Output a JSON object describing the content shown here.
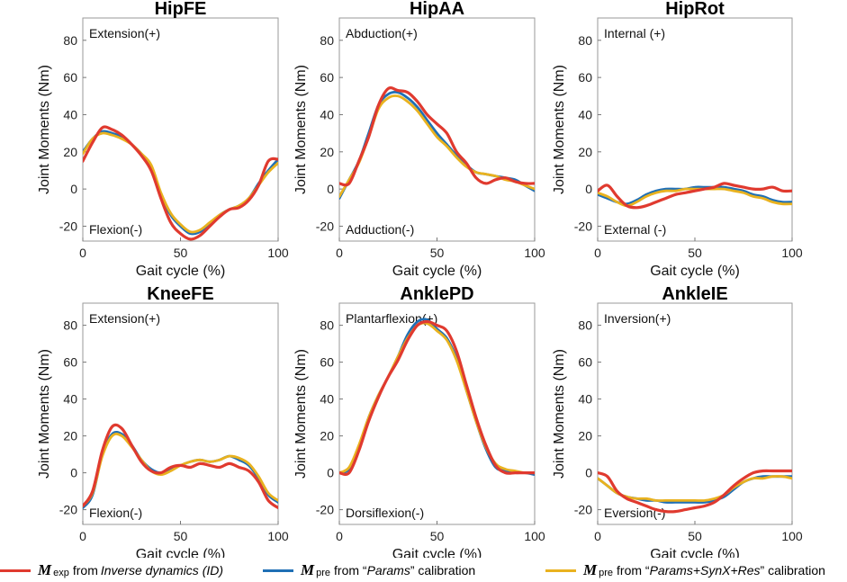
{
  "chart_data": [
    {
      "type": "line",
      "title": "HipFE",
      "xlabel": "Gait cycle (%)",
      "ylabel": "Joint Moments (Nm)",
      "xlim": [
        0,
        100
      ],
      "ylim": [
        -28,
        92
      ],
      "xticks": [
        "0",
        "50",
        "100"
      ],
      "yticks": [
        "-20",
        "0",
        "20",
        "40",
        "60",
        "80"
      ],
      "annotation_top": "Extension(+)",
      "annotation_bottom": "Flexion(-)",
      "x": [
        0,
        5,
        10,
        15,
        20,
        25,
        30,
        35,
        40,
        45,
        50,
        55,
        60,
        65,
        70,
        75,
        80,
        85,
        90,
        95,
        100
      ],
      "series": [
        {
          "name": "exp",
          "values": [
            15,
            25,
            33,
            32,
            29,
            24,
            18,
            10,
            -5,
            -18,
            -24,
            -27,
            -25,
            -20,
            -15,
            -11,
            -10,
            -6,
            2,
            15,
            16
          ]
        },
        {
          "name": "pre_params",
          "values": [
            20,
            27,
            31,
            30,
            28,
            24,
            19,
            12,
            -3,
            -14,
            -20,
            -24,
            -23,
            -19,
            -14,
            -11,
            -9,
            -5,
            3,
            10,
            16
          ]
        },
        {
          "name": "pre_synx",
          "values": [
            19,
            27,
            30,
            29,
            27,
            24,
            19,
            13,
            -2,
            -13,
            -19,
            -23,
            -22,
            -18,
            -14,
            -11,
            -9,
            -5,
            2,
            9,
            14
          ]
        }
      ]
    },
    {
      "type": "line",
      "title": "HipAA",
      "xlabel": "Gait cycle (%)",
      "ylabel": "Joint Moments (Nm)",
      "xlim": [
        0,
        100
      ],
      "ylim": [
        -28,
        92
      ],
      "xticks": [
        "0",
        "50",
        "100"
      ],
      "yticks": [
        "-20",
        "0",
        "20",
        "40",
        "60",
        "80"
      ],
      "annotation_top": "Abduction(+)",
      "annotation_bottom": "Adduction(-)",
      "x": [
        0,
        5,
        10,
        15,
        20,
        25,
        30,
        35,
        40,
        45,
        50,
        55,
        60,
        65,
        70,
        75,
        80,
        85,
        90,
        95,
        100
      ],
      "series": [
        {
          "name": "exp",
          "values": [
            3,
            3,
            15,
            28,
            45,
            54,
            53,
            52,
            47,
            40,
            35,
            30,
            20,
            14,
            6,
            3,
            5,
            6,
            4,
            3,
            3
          ]
        },
        {
          "name": "pre_params",
          "values": [
            -5,
            5,
            15,
            30,
            45,
            51,
            52,
            49,
            44,
            37,
            30,
            24,
            18,
            13,
            9,
            8,
            7,
            6,
            5,
            2,
            -1
          ]
        },
        {
          "name": "pre_synx",
          "values": [
            -4,
            5,
            14,
            28,
            43,
            49,
            50,
            47,
            42,
            35,
            28,
            23,
            17,
            12,
            9,
            8,
            7,
            5,
            4,
            2,
            0
          ]
        }
      ]
    },
    {
      "type": "line",
      "title": "HipRot",
      "xlabel": "Gait cycle (%)",
      "ylabel": "Joint Moments (Nm)",
      "xlim": [
        0,
        100
      ],
      "ylim": [
        -28,
        92
      ],
      "xticks": [
        "0",
        "50",
        "100"
      ],
      "yticks": [
        "-20",
        "0",
        "20",
        "40",
        "60",
        "80"
      ],
      "annotation_top": "Internal (+)",
      "annotation_bottom": "External (-)",
      "x": [
        0,
        5,
        10,
        15,
        20,
        25,
        30,
        35,
        40,
        45,
        50,
        55,
        60,
        65,
        70,
        75,
        80,
        85,
        90,
        95,
        100
      ],
      "series": [
        {
          "name": "exp",
          "values": [
            -1,
            2,
            -4,
            -9,
            -10,
            -9,
            -7,
            -5,
            -3,
            -2,
            -1,
            0,
            1,
            3,
            2,
            1,
            0,
            0,
            1,
            -1,
            -1
          ]
        },
        {
          "name": "pre_params",
          "values": [
            -3,
            -5,
            -7,
            -8,
            -6,
            -3,
            -1,
            0,
            0,
            0,
            1,
            1,
            1,
            1,
            0,
            -1,
            -3,
            -4,
            -6,
            -7,
            -7
          ]
        },
        {
          "name": "pre_synx",
          "values": [
            -2,
            -4,
            -7,
            -9,
            -7,
            -4,
            -2,
            -1,
            -1,
            0,
            0,
            0,
            0,
            0,
            -1,
            -2,
            -4,
            -5,
            -7,
            -8,
            -8
          ]
        }
      ]
    },
    {
      "type": "line",
      "title": "KneeFE",
      "xlabel": "Gait cycle (%)",
      "ylabel": "Joint Moments (Nm)",
      "xlim": [
        0,
        100
      ],
      "ylim": [
        -28,
        92
      ],
      "xticks": [
        "0",
        "50",
        "100"
      ],
      "yticks": [
        "-20",
        "0",
        "20",
        "40",
        "60",
        "80"
      ],
      "annotation_top": "Extension(+)",
      "annotation_bottom": "Flexion(-)",
      "x": [
        0,
        5,
        10,
        15,
        20,
        25,
        30,
        35,
        40,
        45,
        50,
        55,
        60,
        65,
        70,
        75,
        80,
        85,
        90,
        95,
        100
      ],
      "series": [
        {
          "name": "exp",
          "values": [
            -18,
            -10,
            12,
            25,
            24,
            15,
            6,
            1,
            0,
            3,
            4,
            3,
            5,
            4,
            3,
            5,
            3,
            1,
            -5,
            -15,
            -19
          ]
        },
        {
          "name": "pre_params",
          "values": [
            -19,
            -12,
            10,
            21,
            21,
            15,
            7,
            2,
            0,
            2,
            4,
            6,
            7,
            6,
            7,
            9,
            7,
            4,
            -3,
            -12,
            -16
          ]
        },
        {
          "name": "pre_synx",
          "values": [
            -18,
            -11,
            9,
            20,
            20,
            14,
            7,
            1,
            -1,
            1,
            4,
            6,
            7,
            6,
            7,
            9,
            8,
            5,
            -2,
            -11,
            -15
          ]
        }
      ]
    },
    {
      "type": "line",
      "title": "AnklePD",
      "xlabel": "Gait cycle (%)",
      "ylabel": "Joint Moments (Nm)",
      "xlim": [
        0,
        100
      ],
      "ylim": [
        -28,
        92
      ],
      "xticks": [
        "0",
        "50",
        "100"
      ],
      "yticks": [
        "-20",
        "0",
        "20",
        "40",
        "60",
        "80"
      ],
      "annotation_top": "Plantarflexion(+)",
      "annotation_bottom": "Dorsiflexion(-)",
      "x": [
        0,
        5,
        10,
        15,
        20,
        25,
        30,
        35,
        40,
        45,
        50,
        55,
        60,
        65,
        70,
        75,
        80,
        85,
        90,
        95,
        100
      ],
      "series": [
        {
          "name": "exp",
          "values": [
            0,
            0,
            12,
            28,
            41,
            52,
            61,
            72,
            80,
            82,
            80,
            77,
            66,
            48,
            30,
            15,
            4,
            0,
            0,
            0,
            0
          ]
        },
        {
          "name": "pre_params",
          "values": [
            0,
            2,
            14,
            30,
            42,
            52,
            63,
            75,
            82,
            83,
            78,
            73,
            62,
            45,
            28,
            13,
            3,
            1,
            0,
            0,
            -1
          ]
        },
        {
          "name": "pre_synx",
          "values": [
            0,
            3,
            15,
            30,
            42,
            52,
            63,
            73,
            80,
            81,
            77,
            72,
            61,
            45,
            28,
            14,
            5,
            2,
            1,
            0,
            0
          ]
        }
      ]
    },
    {
      "type": "line",
      "title": "AnkleIE",
      "xlabel": "Gait cycle (%)",
      "ylabel": "Joint Moments (Nm)",
      "xlim": [
        0,
        100
      ],
      "ylim": [
        -28,
        92
      ],
      "xticks": [
        "0",
        "50",
        "100"
      ],
      "yticks": [
        "-20",
        "0",
        "20",
        "40",
        "60",
        "80"
      ],
      "annotation_top": "Inversion(+)",
      "annotation_bottom": "Eversion(-)",
      "x": [
        0,
        5,
        10,
        15,
        20,
        25,
        30,
        35,
        40,
        45,
        50,
        55,
        60,
        65,
        70,
        75,
        80,
        85,
        90,
        95,
        100
      ],
      "series": [
        {
          "name": "exp",
          "values": [
            0,
            -2,
            -10,
            -14,
            -16,
            -18,
            -20,
            -21,
            -21,
            -20,
            -19,
            -18,
            -16,
            -12,
            -7,
            -3,
            0,
            1,
            1,
            1,
            1
          ]
        },
        {
          "name": "pre_params",
          "values": [
            -3,
            -7,
            -11,
            -13,
            -14,
            -15,
            -15,
            -16,
            -16,
            -16,
            -16,
            -16,
            -15,
            -13,
            -9,
            -5,
            -3,
            -2,
            -2,
            -2,
            -2
          ]
        },
        {
          "name": "pre_synx",
          "values": [
            -3,
            -7,
            -11,
            -13,
            -14,
            -14,
            -15,
            -15,
            -15,
            -15,
            -15,
            -15,
            -14,
            -12,
            -8,
            -5,
            -3,
            -3,
            -2,
            -2,
            -3
          ]
        }
      ]
    }
  ],
  "legend": {
    "exp": {
      "symbol": "M",
      "sub": "exp",
      "pre": "from",
      "italic": "Inverse dynamics (ID)",
      "post": "",
      "color": "#e03a2f"
    },
    "pre_params": {
      "symbol": "M",
      "sub": "pre",
      "pre": "from “",
      "italic": "Params",
      "post": "” calibration",
      "color": "#1f6fb5"
    },
    "pre_synx": {
      "symbol": "M",
      "sub": "pre",
      "pre": "from “",
      "italic": "Params+SynX+Res",
      "post": "” calibration",
      "color": "#e9b21f"
    }
  }
}
